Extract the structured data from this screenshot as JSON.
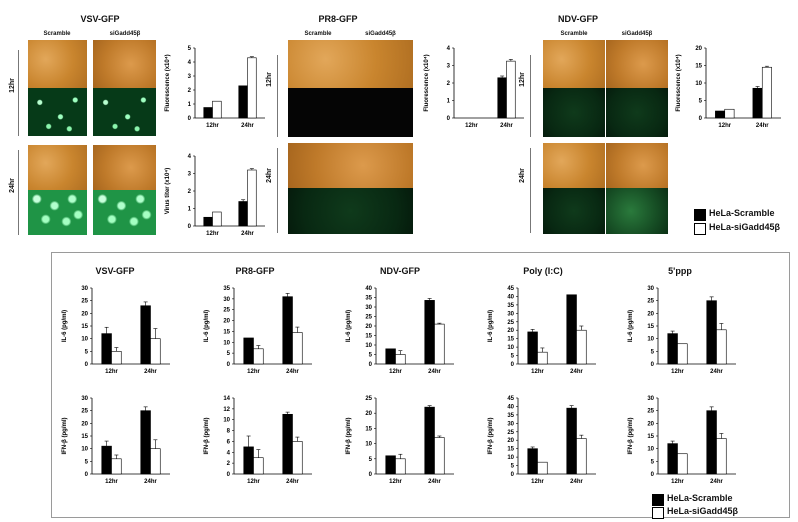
{
  "top": {
    "virus_titles": [
      "VSV-GFP",
      "PR8-GFP",
      "NDV-GFP"
    ],
    "col_labels": [
      "Scramble",
      "siGadd45β"
    ],
    "row_labels": [
      "12hr",
      "24hr"
    ]
  },
  "legend": {
    "items": [
      {
        "label": "HeLa-Scramble",
        "color": "#000000"
      },
      {
        "label": "HeLa-siGadd45β",
        "color": "#ffffff"
      }
    ]
  },
  "colors": {
    "bar_dark": "#000000",
    "bar_light": "#ffffff",
    "frame": "#9a9a9a"
  },
  "chart_data": [
    {
      "id": "vsv_fluor",
      "type": "bar",
      "categories": [
        "12hr",
        "24hr"
      ],
      "ylabel": "Fluorescence (x10⁴)",
      "ylim": [
        0,
        5
      ],
      "yticks": [
        0,
        1,
        2,
        3,
        4,
        5
      ],
      "series": [
        {
          "name": "HeLa-Scramble",
          "values": [
            0.75,
            2.3
          ],
          "errors": [
            0,
            0
          ]
        },
        {
          "name": "HeLa-siGadd45β",
          "values": [
            1.2,
            4.3
          ],
          "errors": [
            0,
            0.08
          ]
        }
      ]
    },
    {
      "id": "vsv_titer",
      "type": "bar",
      "categories": [
        "12hr",
        "24hr"
      ],
      "ylabel": "Virus titer (x10⁴)",
      "ylim": [
        0,
        4
      ],
      "yticks": [
        0,
        1,
        2,
        3,
        4
      ],
      "series": [
        {
          "name": "HeLa-Scramble",
          "values": [
            0.5,
            1.4
          ],
          "errors": [
            0,
            0.1
          ]
        },
        {
          "name": "HeLa-siGadd45β",
          "values": [
            0.8,
            3.2
          ],
          "errors": [
            0,
            0.08
          ]
        }
      ]
    },
    {
      "id": "pr8_fluor",
      "type": "bar",
      "categories": [
        "12hr",
        "24hr"
      ],
      "ylabel": "Fluorescence (x10⁴)",
      "ylim": [
        0,
        4
      ],
      "yticks": [
        0,
        1,
        2,
        3,
        4
      ],
      "series": [
        {
          "name": "HeLa-Scramble",
          "values": [
            0,
            2.3
          ],
          "errors": [
            0,
            0.1
          ]
        },
        {
          "name": "HeLa-siGadd45β",
          "values": [
            0,
            3.25
          ],
          "errors": [
            0,
            0.1
          ]
        }
      ]
    },
    {
      "id": "ndv_fluor",
      "type": "bar",
      "categories": [
        "12hr",
        "24hr"
      ],
      "ylabel": "Fluorescence (x10⁴)",
      "ylim": [
        0,
        20
      ],
      "yticks": [
        0,
        5,
        10,
        15,
        20
      ],
      "series": [
        {
          "name": "HeLa-Scramble",
          "values": [
            2.0,
            8.5
          ],
          "errors": [
            0,
            0.5
          ]
        },
        {
          "name": "HeLa-siGadd45β",
          "values": [
            2.5,
            14.5
          ],
          "errors": [
            0,
            0.3
          ]
        }
      ]
    },
    {
      "id": "il6_vsv",
      "type": "bar",
      "title": "VSV-GFP",
      "categories": [
        "12hr",
        "24hr"
      ],
      "ylabel": "IL-6 (pg/ml)",
      "ylim": [
        0,
        30
      ],
      "yticks": [
        0,
        5,
        10,
        15,
        20,
        25,
        30
      ],
      "series": [
        {
          "name": "HeLa-Scramble",
          "values": [
            12,
            23
          ],
          "errors": [
            2.5,
            1.5
          ]
        },
        {
          "name": "HeLa-siGadd45β",
          "values": [
            5,
            10
          ],
          "errors": [
            1.5,
            4
          ]
        }
      ]
    },
    {
      "id": "il6_pr8",
      "type": "bar",
      "title": "PR8-GFP",
      "categories": [
        "12hr",
        "24hr"
      ],
      "ylabel": "IL-6 (pg/ml)",
      "ylim": [
        0,
        35
      ],
      "yticks": [
        0,
        5,
        10,
        15,
        20,
        25,
        30,
        35
      ],
      "series": [
        {
          "name": "HeLa-Scramble",
          "values": [
            12,
            31
          ],
          "errors": [
            0,
            1.5
          ]
        },
        {
          "name": "HeLa-siGadd45β",
          "values": [
            7,
            14.5
          ],
          "errors": [
            1.5,
            2.5
          ]
        }
      ]
    },
    {
      "id": "il6_ndv",
      "type": "bar",
      "title": "NDV-GFP",
      "categories": [
        "12hr",
        "24hr"
      ],
      "ylabel": "IL-6 (pg/ml)",
      "ylim": [
        0,
        40
      ],
      "yticks": [
        0,
        5,
        10,
        15,
        20,
        25,
        30,
        35,
        40
      ],
      "series": [
        {
          "name": "HeLa-Scramble",
          "values": [
            8,
            33.5
          ],
          "errors": [
            0,
            1
          ]
        },
        {
          "name": "HeLa-siGadd45β",
          "values": [
            5,
            21
          ],
          "errors": [
            2,
            0.5
          ]
        }
      ]
    },
    {
      "id": "il6_polyic",
      "type": "bar",
      "title": "Poly (I:C)",
      "categories": [
        "12hr",
        "24hr"
      ],
      "ylabel": "IL-6 (pg/ml)",
      "ylim": [
        0,
        45
      ],
      "yticks": [
        0,
        5,
        10,
        15,
        20,
        25,
        30,
        35,
        40,
        45
      ],
      "series": [
        {
          "name": "HeLa-Scramble",
          "values": [
            19,
            41
          ],
          "errors": [
            1.5,
            0
          ]
        },
        {
          "name": "HeLa-siGadd45β",
          "values": [
            7,
            20
          ],
          "errors": [
            2.5,
            2.5
          ]
        }
      ]
    },
    {
      "id": "il6_5ppp",
      "type": "bar",
      "title": "5'ppp",
      "categories": [
        "12hr",
        "24hr"
      ],
      "ylabel": "IL-6 (pg/ml)",
      "ylim": [
        0,
        30
      ],
      "yticks": [
        0,
        5,
        10,
        15,
        20,
        25,
        30
      ],
      "series": [
        {
          "name": "HeLa-Scramble",
          "values": [
            12,
            25
          ],
          "errors": [
            1,
            1.5
          ]
        },
        {
          "name": "HeLa-siGadd45β",
          "values": [
            8,
            13.5
          ],
          "errors": [
            0,
            2.5
          ]
        }
      ]
    },
    {
      "id": "ifn_vsv",
      "type": "bar",
      "categories": [
        "12hr",
        "24hr"
      ],
      "ylabel": "IFN-β (pg/ml)",
      "ylim": [
        0,
        30
      ],
      "yticks": [
        0,
        5,
        10,
        15,
        20,
        25,
        30
      ],
      "series": [
        {
          "name": "HeLa-Scramble",
          "values": [
            11,
            25
          ],
          "errors": [
            2,
            1.5
          ]
        },
        {
          "name": "HeLa-siGadd45β",
          "values": [
            6,
            10
          ],
          "errors": [
            1.5,
            3.5
          ]
        }
      ]
    },
    {
      "id": "ifn_pr8",
      "type": "bar",
      "categories": [
        "12hr",
        "24hr"
      ],
      "ylabel": "IFN-β (pg/ml)",
      "ylim": [
        0,
        14
      ],
      "yticks": [
        0,
        2,
        4,
        6,
        8,
        10,
        12,
        14
      ],
      "series": [
        {
          "name": "HeLa-Scramble",
          "values": [
            5,
            11
          ],
          "errors": [
            2,
            0.4
          ]
        },
        {
          "name": "HeLa-siGadd45β",
          "values": [
            3,
            6
          ],
          "errors": [
            1.5,
            0.8
          ]
        }
      ]
    },
    {
      "id": "ifn_ndv",
      "type": "bar",
      "categories": [
        "12hr",
        "24hr"
      ],
      "ylabel": "IFN-β (pg/ml)",
      "ylim": [
        0,
        25
      ],
      "yticks": [
        0,
        5,
        10,
        15,
        20,
        25
      ],
      "series": [
        {
          "name": "HeLa-Scramble",
          "values": [
            6,
            22
          ],
          "errors": [
            0,
            0.5
          ]
        },
        {
          "name": "HeLa-siGadd45β",
          "values": [
            5,
            12
          ],
          "errors": [
            1.5,
            0.5
          ]
        }
      ]
    },
    {
      "id": "ifn_polyic",
      "type": "bar",
      "categories": [
        "12hr",
        "24hr"
      ],
      "ylabel": "IFN-β (pg/ml)",
      "ylim": [
        0,
        45
      ],
      "yticks": [
        0,
        5,
        10,
        15,
        20,
        25,
        30,
        35,
        40,
        45
      ],
      "series": [
        {
          "name": "HeLa-Scramble",
          "values": [
            15,
            39
          ],
          "errors": [
            1,
            1.5
          ]
        },
        {
          "name": "HeLa-siGadd45β",
          "values": [
            7,
            21
          ],
          "errors": [
            0,
            2
          ]
        }
      ]
    },
    {
      "id": "ifn_5ppp",
      "type": "bar",
      "categories": [
        "12hr",
        "24hr"
      ],
      "ylabel": "IFN-β (pg/ml)",
      "ylim": [
        0,
        30
      ],
      "yticks": [
        0,
        5,
        10,
        15,
        20,
        25,
        30
      ],
      "series": [
        {
          "name": "HeLa-Scramble",
          "values": [
            12,
            25
          ],
          "errors": [
            1,
            1.5
          ]
        },
        {
          "name": "HeLa-siGadd45β",
          "values": [
            8,
            14
          ],
          "errors": [
            0,
            2
          ]
        }
      ]
    }
  ]
}
